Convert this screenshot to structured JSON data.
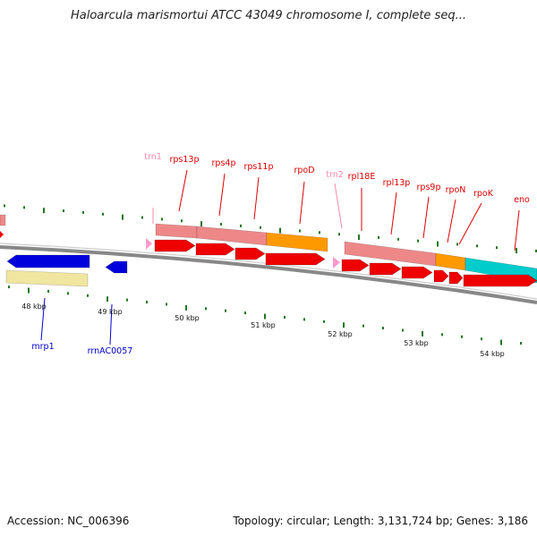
{
  "title": "Haloarcula marismortui ATCC 43049 chromosome I, complete seq...",
  "footer": {
    "accession": "Accession: NC_006396",
    "summary": "Topology: circular; Length: 3,131,724 bp; Genes: 3,186"
  },
  "colors": {
    "protein_cds": "#ee0000",
    "rna_gene": "#ff99cc",
    "blue_cds": "#0000dd",
    "gene_band_pink": "#ee8888",
    "gene_band_orange": "#ff9900",
    "gene_band_cyan": "#00cccc",
    "gene_band_yellow": "#f0e6a0",
    "backbone": "#888888",
    "tick_green": "#227722",
    "label_red": "#dd0000",
    "label_pink": "#ff88aa",
    "label_blue": "#0000cc"
  },
  "top_labels": [
    {
      "name": "trn1",
      "kind": "rna"
    },
    {
      "name": "rps13p",
      "kind": "protein"
    },
    {
      "name": "rps4p",
      "kind": "protein"
    },
    {
      "name": "rps11p",
      "kind": "protein"
    },
    {
      "name": "rpoD",
      "kind": "protein"
    },
    {
      "name": "trn2",
      "kind": "rna"
    },
    {
      "name": "rpl18E",
      "kind": "protein"
    },
    {
      "name": "rpl13p",
      "kind": "protein"
    },
    {
      "name": "rps9p",
      "kind": "protein"
    },
    {
      "name": "rpoN",
      "kind": "protein"
    },
    {
      "name": "rpoK",
      "kind": "protein"
    },
    {
      "name": "eno",
      "kind": "protein"
    }
  ],
  "bottom_labels": [
    {
      "name": "mrp1",
      "kind": "blue"
    },
    {
      "name": "rrnAC0057",
      "kind": "blue"
    }
  ],
  "kbp_labels": [
    "48 kbp",
    "49 kbp",
    "50 kbp",
    "51 kbp",
    "52 kbp",
    "53 kbp",
    "54 kbp"
  ]
}
